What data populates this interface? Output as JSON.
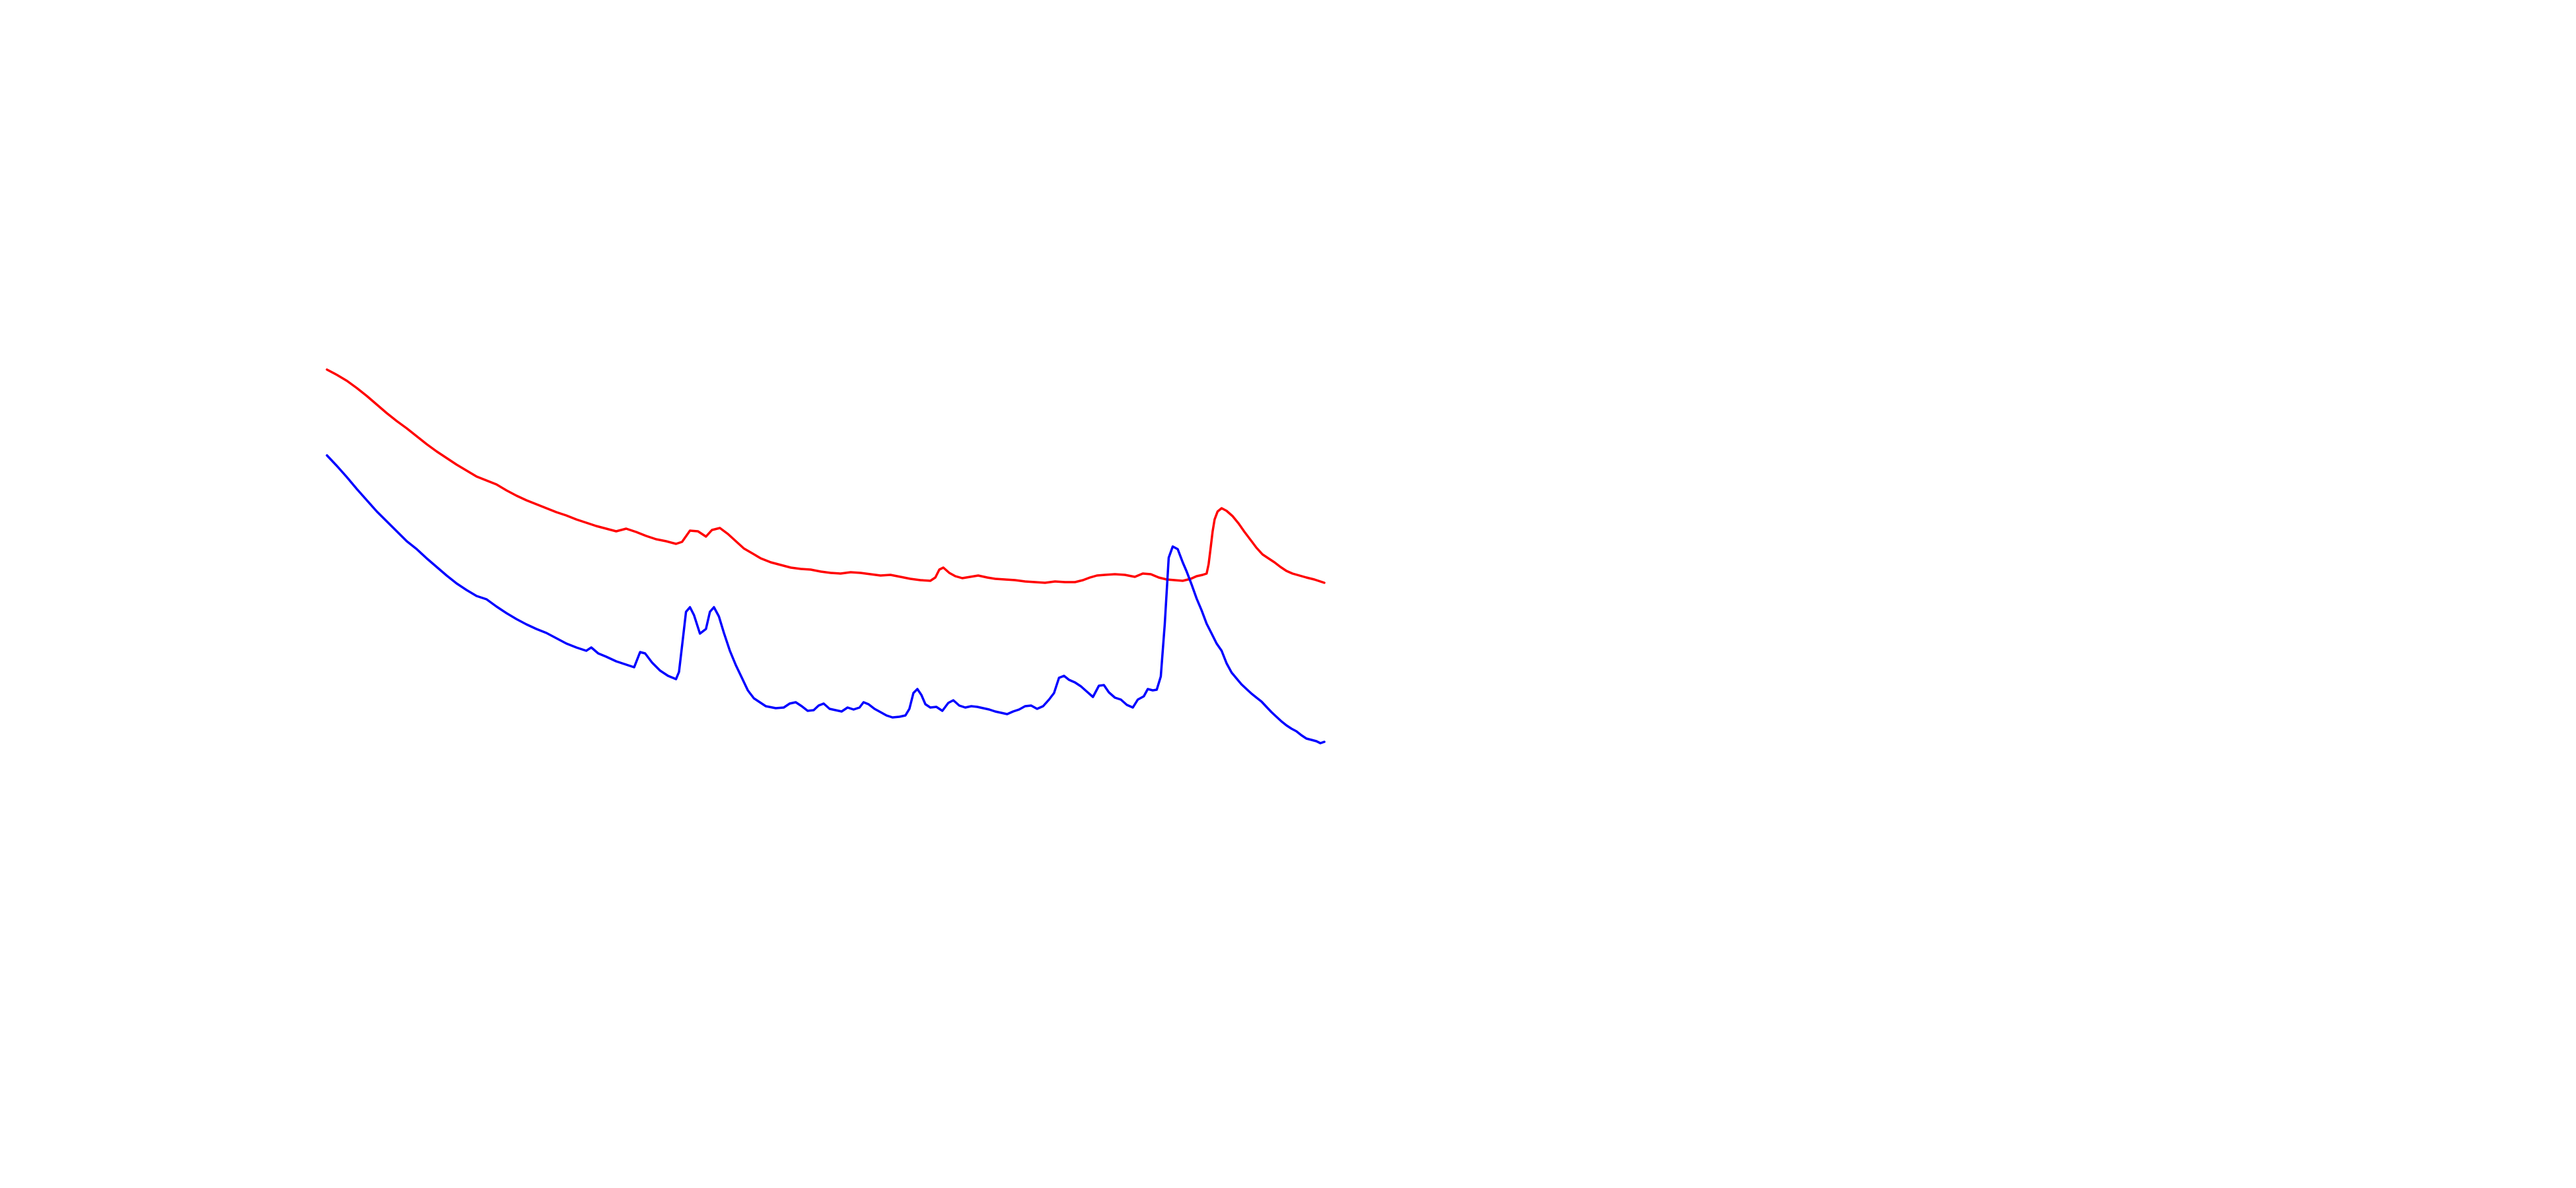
{
  "chart_data": {
    "type": "line",
    "title": "",
    "xlabel": "",
    "ylabel": "",
    "xlim": [
      0,
      100
    ],
    "ylim": [
      0,
      100
    ],
    "grid": false,
    "legend": "none",
    "series": [
      {
        "color": "#ff0000",
        "points": [
          [
            0.0,
            84.0
          ],
          [
            1.0,
            83.2
          ],
          [
            2.0,
            82.3
          ],
          [
            3.0,
            81.2
          ],
          [
            4.0,
            80.0
          ],
          [
            5.0,
            78.7
          ],
          [
            6.0,
            77.4
          ],
          [
            7.0,
            76.2
          ],
          [
            8.0,
            75.1
          ],
          [
            9.0,
            73.9
          ],
          [
            10.0,
            72.7
          ],
          [
            11.0,
            71.6
          ],
          [
            12.0,
            70.6
          ],
          [
            13.0,
            69.6
          ],
          [
            14.0,
            68.7
          ],
          [
            15.0,
            67.8
          ],
          [
            16.0,
            67.2
          ],
          [
            17.0,
            66.6
          ],
          [
            18.0,
            65.7
          ],
          [
            19.0,
            64.9
          ],
          [
            20.0,
            64.2
          ],
          [
            21.0,
            63.6
          ],
          [
            22.0,
            63.0
          ],
          [
            23.0,
            62.4
          ],
          [
            24.0,
            61.9
          ],
          [
            25.0,
            61.3
          ],
          [
            26.0,
            60.8
          ],
          [
            27.0,
            60.3
          ],
          [
            28.0,
            59.9
          ],
          [
            29.0,
            59.5
          ],
          [
            30.0,
            59.9
          ],
          [
            31.0,
            59.4
          ],
          [
            32.0,
            58.8
          ],
          [
            33.0,
            58.3
          ],
          [
            34.0,
            58.0
          ],
          [
            35.0,
            57.6
          ],
          [
            35.6,
            57.9
          ],
          [
            36.4,
            59.6
          ],
          [
            37.2,
            59.5
          ],
          [
            38.0,
            58.7
          ],
          [
            38.6,
            59.7
          ],
          [
            39.4,
            60.0
          ],
          [
            40.2,
            59.1
          ],
          [
            41.0,
            58.0
          ],
          [
            41.8,
            56.9
          ],
          [
            42.6,
            56.2
          ],
          [
            43.5,
            55.4
          ],
          [
            44.5,
            54.8
          ],
          [
            45.5,
            54.4
          ],
          [
            46.5,
            54.0
          ],
          [
            47.5,
            53.8
          ],
          [
            48.5,
            53.7
          ],
          [
            49.5,
            53.4
          ],
          [
            50.5,
            53.2
          ],
          [
            51.5,
            53.1
          ],
          [
            52.5,
            53.3
          ],
          [
            53.5,
            53.2
          ],
          [
            54.5,
            53.0
          ],
          [
            55.5,
            52.8
          ],
          [
            56.5,
            52.9
          ],
          [
            57.5,
            52.6
          ],
          [
            58.5,
            52.3
          ],
          [
            59.5,
            52.1
          ],
          [
            60.5,
            52.0
          ],
          [
            61.0,
            52.5
          ],
          [
            61.4,
            53.7
          ],
          [
            61.8,
            54.0
          ],
          [
            62.4,
            53.2
          ],
          [
            63.0,
            52.7
          ],
          [
            63.7,
            52.4
          ],
          [
            64.5,
            52.6
          ],
          [
            65.3,
            52.8
          ],
          [
            66.2,
            52.5
          ],
          [
            67.0,
            52.3
          ],
          [
            68.0,
            52.2
          ],
          [
            69.0,
            52.1
          ],
          [
            70.0,
            51.9
          ],
          [
            71.0,
            51.8
          ],
          [
            72.0,
            51.7
          ],
          [
            73.0,
            51.9
          ],
          [
            74.0,
            51.8
          ],
          [
            75.0,
            51.8
          ],
          [
            75.8,
            52.1
          ],
          [
            76.5,
            52.5
          ],
          [
            77.2,
            52.8
          ],
          [
            78.0,
            52.9
          ],
          [
            79.0,
            53.0
          ],
          [
            80.0,
            52.9
          ],
          [
            81.0,
            52.6
          ],
          [
            81.8,
            53.1
          ],
          [
            82.6,
            53.0
          ],
          [
            83.4,
            52.5
          ],
          [
            84.2,
            52.2
          ],
          [
            85.0,
            52.1
          ],
          [
            85.8,
            52.0
          ],
          [
            86.6,
            52.3
          ],
          [
            87.2,
            52.7
          ],
          [
            87.8,
            52.9
          ],
          [
            88.2,
            53.1
          ],
          [
            88.4,
            54.5
          ],
          [
            88.6,
            57.0
          ],
          [
            88.8,
            59.5
          ],
          [
            89.0,
            61.3
          ],
          [
            89.3,
            62.5
          ],
          [
            89.7,
            63.0
          ],
          [
            90.2,
            62.6
          ],
          [
            90.8,
            61.8
          ],
          [
            91.4,
            60.7
          ],
          [
            92.0,
            59.4
          ],
          [
            92.6,
            58.2
          ],
          [
            93.2,
            57.0
          ],
          [
            93.8,
            56.0
          ],
          [
            94.4,
            55.4
          ],
          [
            95.0,
            54.8
          ],
          [
            95.6,
            54.1
          ],
          [
            96.2,
            53.5
          ],
          [
            96.8,
            53.1
          ],
          [
            97.5,
            52.8
          ],
          [
            98.2,
            52.5
          ],
          [
            99.0,
            52.2
          ],
          [
            100.0,
            51.7
          ]
        ]
      },
      {
        "color": "#0000ff",
        "points": [
          [
            0.0,
            71.0
          ],
          [
            1.0,
            69.4
          ],
          [
            2.0,
            67.7
          ],
          [
            3.0,
            65.9
          ],
          [
            4.0,
            64.2
          ],
          [
            5.0,
            62.5
          ],
          [
            6.0,
            61.0
          ],
          [
            7.0,
            59.5
          ],
          [
            8.0,
            58.0
          ],
          [
            9.0,
            56.8
          ],
          [
            10.0,
            55.4
          ],
          [
            11.0,
            54.1
          ],
          [
            12.0,
            52.8
          ],
          [
            13.0,
            51.6
          ],
          [
            14.0,
            50.6
          ],
          [
            15.0,
            49.7
          ],
          [
            16.0,
            49.2
          ],
          [
            17.0,
            48.1
          ],
          [
            18.0,
            47.1
          ],
          [
            19.0,
            46.2
          ],
          [
            20.0,
            45.4
          ],
          [
            21.0,
            44.7
          ],
          [
            22.0,
            44.1
          ],
          [
            23.0,
            43.3
          ],
          [
            24.0,
            42.5
          ],
          [
            25.0,
            41.9
          ],
          [
            26.0,
            41.4
          ],
          [
            26.5,
            41.9
          ],
          [
            27.2,
            41.0
          ],
          [
            28.0,
            40.5
          ],
          [
            29.0,
            39.8
          ],
          [
            30.0,
            39.3
          ],
          [
            30.8,
            38.9
          ],
          [
            31.4,
            41.2
          ],
          [
            31.9,
            41.0
          ],
          [
            32.6,
            39.6
          ],
          [
            33.4,
            38.4
          ],
          [
            34.2,
            37.6
          ],
          [
            35.0,
            37.1
          ],
          [
            35.3,
            38.2
          ],
          [
            35.7,
            43.4
          ],
          [
            36.0,
            47.3
          ],
          [
            36.4,
            48.0
          ],
          [
            36.8,
            46.8
          ],
          [
            37.4,
            44.0
          ],
          [
            38.0,
            44.7
          ],
          [
            38.4,
            47.3
          ],
          [
            38.8,
            48.0
          ],
          [
            39.3,
            46.6
          ],
          [
            39.8,
            44.1
          ],
          [
            40.4,
            41.4
          ],
          [
            41.0,
            39.2
          ],
          [
            41.6,
            37.3
          ],
          [
            42.2,
            35.4
          ],
          [
            42.8,
            34.2
          ],
          [
            43.4,
            33.6
          ],
          [
            44.0,
            33.0
          ],
          [
            45.0,
            32.7
          ],
          [
            45.8,
            32.8
          ],
          [
            46.4,
            33.4
          ],
          [
            47.0,
            33.6
          ],
          [
            47.6,
            33.0
          ],
          [
            48.2,
            32.3
          ],
          [
            48.8,
            32.4
          ],
          [
            49.3,
            33.1
          ],
          [
            49.8,
            33.4
          ],
          [
            50.4,
            32.6
          ],
          [
            51.0,
            32.4
          ],
          [
            51.6,
            32.2
          ],
          [
            52.2,
            32.8
          ],
          [
            52.8,
            32.5
          ],
          [
            53.4,
            32.8
          ],
          [
            53.8,
            33.6
          ],
          [
            54.3,
            33.3
          ],
          [
            54.9,
            32.6
          ],
          [
            55.5,
            32.1
          ],
          [
            56.1,
            31.6
          ],
          [
            56.7,
            31.3
          ],
          [
            57.4,
            31.4
          ],
          [
            58.0,
            31.6
          ],
          [
            58.4,
            32.6
          ],
          [
            58.8,
            35.0
          ],
          [
            59.2,
            35.6
          ],
          [
            59.6,
            34.7
          ],
          [
            60.0,
            33.3
          ],
          [
            60.5,
            32.8
          ],
          [
            61.1,
            32.9
          ],
          [
            61.7,
            32.3
          ],
          [
            62.3,
            33.5
          ],
          [
            62.8,
            33.9
          ],
          [
            63.4,
            33.1
          ],
          [
            64.0,
            32.8
          ],
          [
            64.6,
            33.0
          ],
          [
            65.2,
            32.9
          ],
          [
            65.8,
            32.7
          ],
          [
            66.4,
            32.5
          ],
          [
            67.0,
            32.2
          ],
          [
            67.6,
            32.0
          ],
          [
            68.2,
            31.8
          ],
          [
            68.8,
            32.2
          ],
          [
            69.4,
            32.5
          ],
          [
            70.0,
            33.0
          ],
          [
            70.6,
            33.1
          ],
          [
            71.2,
            32.6
          ],
          [
            71.8,
            33.0
          ],
          [
            72.4,
            34.0
          ],
          [
            72.9,
            35.0
          ],
          [
            73.4,
            37.3
          ],
          [
            73.9,
            37.6
          ],
          [
            74.4,
            37.0
          ],
          [
            75.0,
            36.6
          ],
          [
            75.6,
            36.0
          ],
          [
            76.2,
            35.2
          ],
          [
            76.8,
            34.4
          ],
          [
            77.4,
            36.1
          ],
          [
            77.9,
            36.2
          ],
          [
            78.4,
            35.1
          ],
          [
            79.0,
            34.3
          ],
          [
            79.6,
            34.0
          ],
          [
            80.2,
            33.2
          ],
          [
            80.8,
            32.8
          ],
          [
            81.3,
            34.0
          ],
          [
            81.9,
            34.5
          ],
          [
            82.3,
            35.6
          ],
          [
            82.8,
            35.4
          ],
          [
            83.2,
            35.5
          ],
          [
            83.6,
            37.5
          ],
          [
            84.0,
            45.4
          ],
          [
            84.4,
            55.5
          ],
          [
            84.8,
            57.2
          ],
          [
            85.3,
            56.8
          ],
          [
            85.8,
            54.8
          ],
          [
            86.2,
            53.4
          ],
          [
            86.7,
            51.4
          ],
          [
            87.2,
            49.3
          ],
          [
            87.7,
            47.5
          ],
          [
            88.2,
            45.5
          ],
          [
            88.7,
            44.0
          ],
          [
            89.2,
            42.5
          ],
          [
            89.7,
            41.4
          ],
          [
            90.2,
            39.5
          ],
          [
            90.7,
            38.1
          ],
          [
            91.2,
            37.2
          ],
          [
            91.7,
            36.3
          ],
          [
            92.2,
            35.6
          ],
          [
            92.7,
            34.9
          ],
          [
            93.2,
            34.3
          ],
          [
            93.7,
            33.7
          ],
          [
            94.2,
            32.9
          ],
          [
            94.7,
            32.1
          ],
          [
            95.2,
            31.4
          ],
          [
            95.7,
            30.7
          ],
          [
            96.2,
            30.1
          ],
          [
            96.7,
            29.6
          ],
          [
            97.2,
            29.2
          ],
          [
            97.7,
            28.6
          ],
          [
            98.2,
            28.1
          ],
          [
            98.7,
            27.9
          ],
          [
            99.2,
            27.7
          ],
          [
            99.6,
            27.4
          ],
          [
            100.0,
            27.6
          ]
        ]
      }
    ]
  }
}
